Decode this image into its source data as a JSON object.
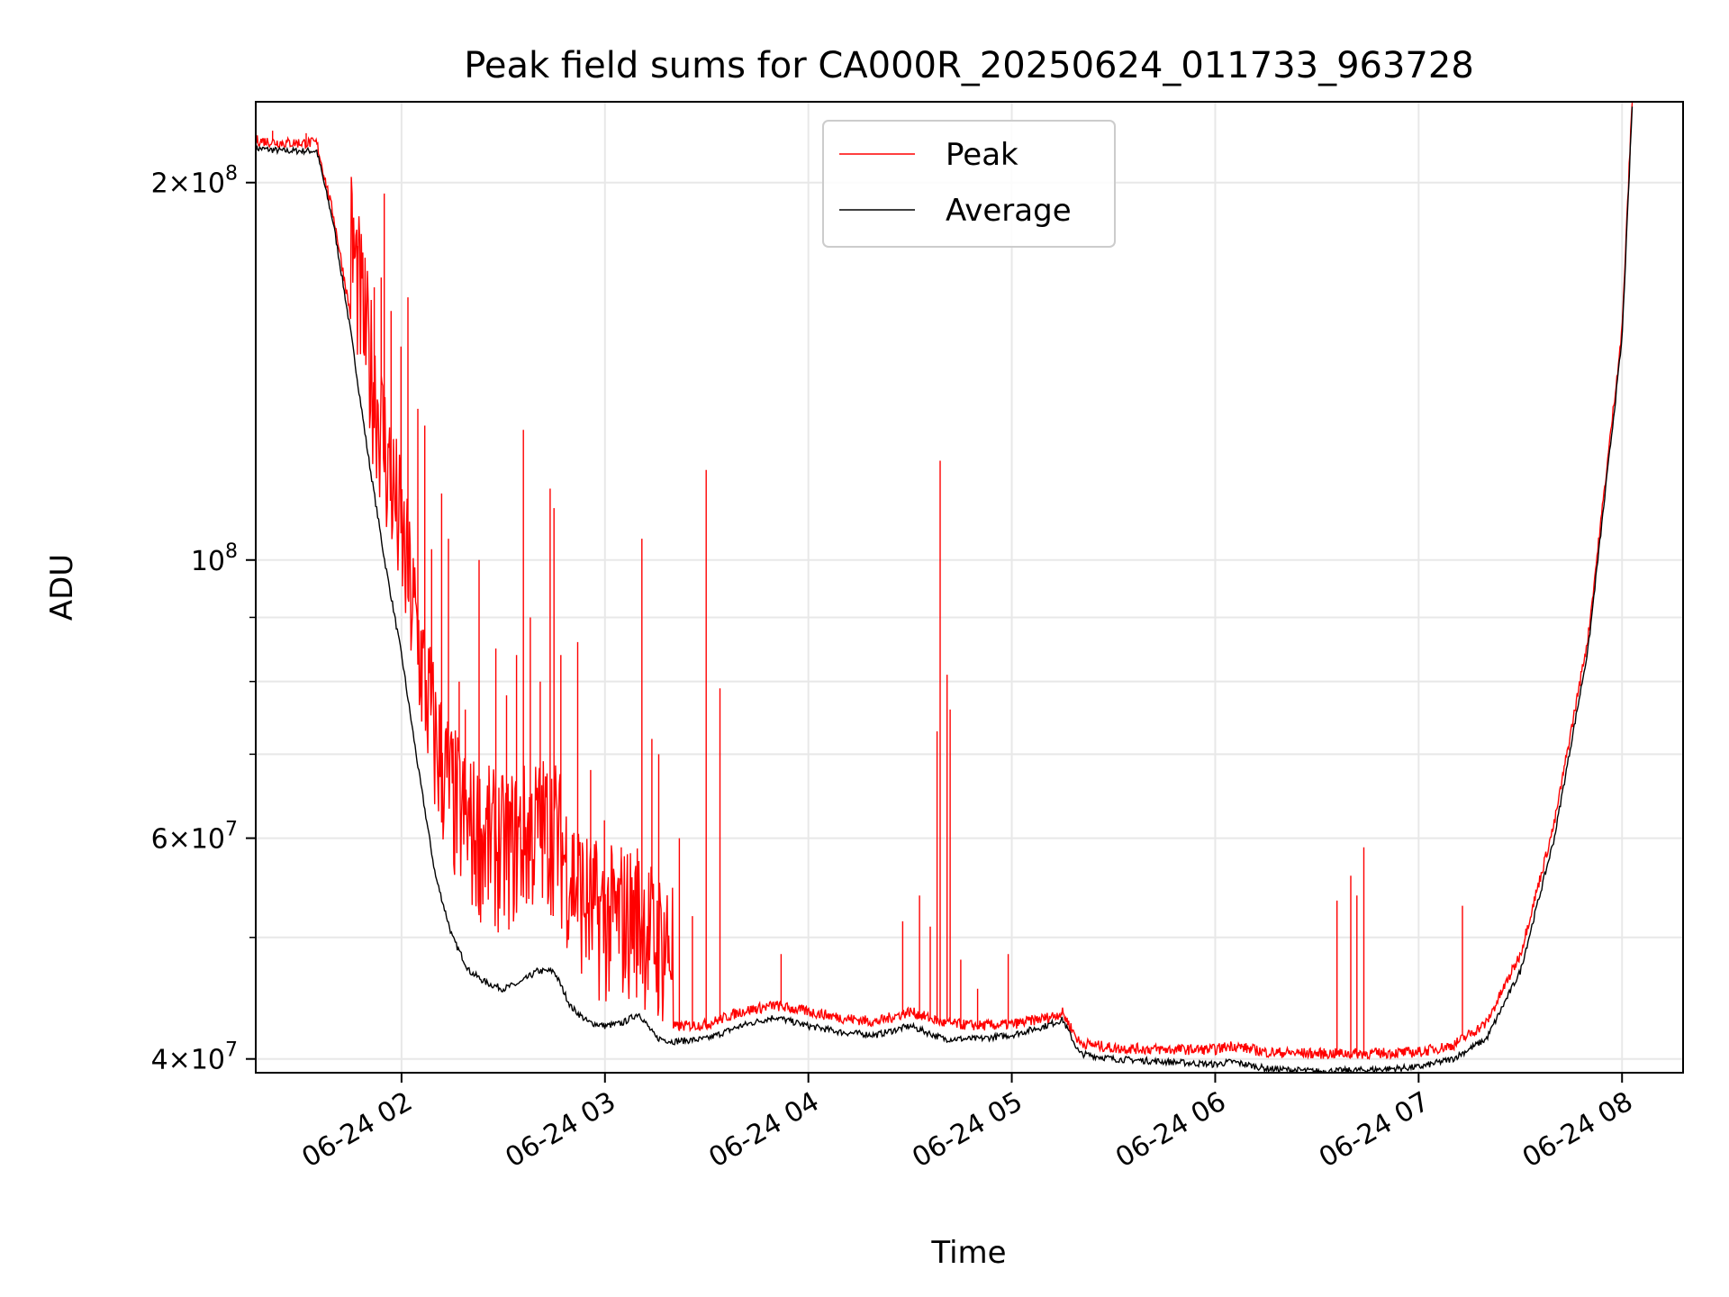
{
  "chart_data": {
    "type": "line",
    "title": "Peak field sums for CA000R_20250624_011733_963728",
    "xlabel": "Time",
    "ylabel": "ADU",
    "y_scale": "log",
    "grid": true,
    "legend_placement": "top-center",
    "xlim": [
      "2025-06-24 01:17",
      "2025-06-24 08:18"
    ],
    "ylim": [
      39000000,
      232000000
    ],
    "x_ticks": [
      {
        "t": "2025-06-24 02:00",
        "label": "06-24 02"
      },
      {
        "t": "2025-06-24 03:00",
        "label": "06-24 03"
      },
      {
        "t": "2025-06-24 04:00",
        "label": "06-24 04"
      },
      {
        "t": "2025-06-24 05:00",
        "label": "06-24 05"
      },
      {
        "t": "2025-06-24 06:00",
        "label": "06-24 06"
      },
      {
        "t": "2025-06-24 07:00",
        "label": "06-24 07"
      },
      {
        "t": "2025-06-24 08:00",
        "label": "06-24 08"
      }
    ],
    "y_ticks": [
      {
        "v": 40000000,
        "mant": "4",
        "exp": "7"
      },
      {
        "v": 60000000,
        "mant": "6",
        "exp": "7"
      },
      {
        "v": 100000000,
        "mant": "",
        "exp": "8"
      },
      {
        "v": 200000000,
        "mant": "2",
        "exp": "8"
      }
    ],
    "series": [
      {
        "name": "Average",
        "color": "#000000",
        "x": [
          "2025-06-24 01:17",
          "2025-06-24 01:25",
          "2025-06-24 01:35",
          "2025-06-24 01:40",
          "2025-06-24 01:45",
          "2025-06-24 01:50",
          "2025-06-24 01:55",
          "2025-06-24 02:00",
          "2025-06-24 02:05",
          "2025-06-24 02:10",
          "2025-06-24 02:15",
          "2025-06-24 02:20",
          "2025-06-24 02:25",
          "2025-06-24 02:30",
          "2025-06-24 02:35",
          "2025-06-24 02:40",
          "2025-06-24 02:45",
          "2025-06-24 02:50",
          "2025-06-24 02:55",
          "2025-06-24 03:00",
          "2025-06-24 03:05",
          "2025-06-24 03:10",
          "2025-06-24 03:15",
          "2025-06-24 03:20",
          "2025-06-24 03:30",
          "2025-06-24 03:40",
          "2025-06-24 03:50",
          "2025-06-24 04:00",
          "2025-06-24 04:10",
          "2025-06-24 04:20",
          "2025-06-24 04:30",
          "2025-06-24 04:40",
          "2025-06-24 04:50",
          "2025-06-24 05:00",
          "2025-06-24 05:10",
          "2025-06-24 05:15",
          "2025-06-24 05:20",
          "2025-06-24 05:30",
          "2025-06-24 05:45",
          "2025-06-24 06:00",
          "2025-06-24 06:05",
          "2025-06-24 06:15",
          "2025-06-24 06:30",
          "2025-06-24 06:45",
          "2025-06-24 07:00",
          "2025-06-24 07:10",
          "2025-06-24 07:20",
          "2025-06-24 07:30",
          "2025-06-24 07:40",
          "2025-06-24 07:50",
          "2025-06-24 08:00",
          "2025-06-24 08:03"
        ],
        "values": [
          213000000,
          212000000,
          212000000,
          185000000,
          152000000,
          122000000,
          100000000,
          84000000,
          68000000,
          56000000,
          50000000,
          47000000,
          46000000,
          45500000,
          46000000,
          47000000,
          47000000,
          44000000,
          42800000,
          42500000,
          42700000,
          43500000,
          41600000,
          41300000,
          41500000,
          42500000,
          43200000,
          42500000,
          42000000,
          41800000,
          42500000,
          41500000,
          41500000,
          41800000,
          42500000,
          43000000,
          40400000,
          40000000,
          39800000,
          39600000,
          39800000,
          39300000,
          39100000,
          39200000,
          39400000,
          40000000,
          41500000,
          47000000,
          60000000,
          85000000,
          150000000,
          230000000
        ]
      },
      {
        "name": "Peak",
        "color": "#ff0000",
        "base_x": [
          "2025-06-24 01:17",
          "2025-06-24 01:25",
          "2025-06-24 01:35",
          "2025-06-24 01:40",
          "2025-06-24 01:45",
          "2025-06-24 01:50",
          "2025-06-24 01:55",
          "2025-06-24 02:00",
          "2025-06-24 02:05",
          "2025-06-24 02:10",
          "2025-06-24 02:15",
          "2025-06-24 02:20",
          "2025-06-24 02:25",
          "2025-06-24 02:30",
          "2025-06-24 02:35",
          "2025-06-24 02:40",
          "2025-06-24 02:45",
          "2025-06-24 02:50",
          "2025-06-24 02:55",
          "2025-06-24 03:00",
          "2025-06-24 03:05",
          "2025-06-24 03:10",
          "2025-06-24 03:15",
          "2025-06-24 03:20",
          "2025-06-24 03:30",
          "2025-06-24 03:40",
          "2025-06-24 03:50",
          "2025-06-24 04:00",
          "2025-06-24 04:10",
          "2025-06-24 04:20",
          "2025-06-24 04:30",
          "2025-06-24 04:40",
          "2025-06-24 04:50",
          "2025-06-24 05:00",
          "2025-06-24 05:10",
          "2025-06-24 05:15",
          "2025-06-24 05:20",
          "2025-06-24 05:30",
          "2025-06-24 05:45",
          "2025-06-24 06:00",
          "2025-06-24 06:05",
          "2025-06-24 06:15",
          "2025-06-24 06:30",
          "2025-06-24 06:45",
          "2025-06-24 07:00",
          "2025-06-24 07:10",
          "2025-06-24 07:20",
          "2025-06-24 07:30",
          "2025-06-24 07:40",
          "2025-06-24 07:50",
          "2025-06-24 08:00",
          "2025-06-24 08:03"
        ],
        "base_values": [
          214000000,
          213000000,
          213000000,
          186000000,
          155000000,
          126000000,
          105000000,
          89000000,
          73000000,
          61000000,
          55000000,
          52000000,
          51000000,
          50000000,
          51000000,
          52000000,
          52000000,
          48000000,
          45000000,
          44000000,
          44000000,
          44500000,
          42200000,
          42000000,
          42200000,
          43200000,
          43700000,
          43200000,
          42700000,
          42400000,
          43200000,
          42300000,
          42100000,
          42200000,
          42700000,
          43100000,
          40800000,
          40400000,
          40300000,
          40300000,
          40600000,
          40100000,
          40000000,
          40000000,
          40100000,
          40600000,
          42300000,
          48000000,
          61000000,
          86000000,
          151000000,
          231000000
        ],
        "spikes": [
          {
            "t": "2025-06-24 01:22",
            "v": 220000000
          },
          {
            "t": "2025-06-24 01:32",
            "v": 219000000
          },
          {
            "t": "2025-06-24 01:47",
            "v": 178000000
          },
          {
            "t": "2025-06-24 01:50",
            "v": 170000000
          },
          {
            "t": "2025-06-24 01:52",
            "v": 165000000
          },
          {
            "t": "2025-06-24 01:54",
            "v": 168000000
          },
          {
            "t": "2025-06-24 01:55",
            "v": 196000000
          },
          {
            "t": "2025-06-24 01:57",
            "v": 158000000
          },
          {
            "t": "2025-06-24 02:00",
            "v": 148000000
          },
          {
            "t": "2025-06-24 02:02",
            "v": 162000000
          },
          {
            "t": "2025-06-24 02:05",
            "v": 132000000
          },
          {
            "t": "2025-06-24 02:07",
            "v": 128000000
          },
          {
            "t": "2025-06-24 02:09",
            "v": 102000000
          },
          {
            "t": "2025-06-24 02:12",
            "v": 113000000
          },
          {
            "t": "2025-06-24 02:14",
            "v": 104000000
          },
          {
            "t": "2025-06-24 02:17",
            "v": 80000000
          },
          {
            "t": "2025-06-24 02:19",
            "v": 76000000
          },
          {
            "t": "2025-06-24 02:23",
            "v": 100000000
          },
          {
            "t": "2025-06-24 02:28",
            "v": 85000000
          },
          {
            "t": "2025-06-24 02:31",
            "v": 78000000
          },
          {
            "t": "2025-06-24 02:34",
            "v": 84000000
          },
          {
            "t": "2025-06-24 02:36",
            "v": 127000000
          },
          {
            "t": "2025-06-24 02:38",
            "v": 90000000
          },
          {
            "t": "2025-06-24 02:41",
            "v": 80000000
          },
          {
            "t": "2025-06-24 02:44",
            "v": 114000000
          },
          {
            "t": "2025-06-24 02:45",
            "v": 110000000
          },
          {
            "t": "2025-06-24 02:47",
            "v": 84000000
          },
          {
            "t": "2025-06-24 02:52",
            "v": 86000000
          },
          {
            "t": "2025-06-24 02:56",
            "v": 68000000
          },
          {
            "t": "2025-06-24 03:00",
            "v": 62000000
          },
          {
            "t": "2025-06-24 03:03",
            "v": 55000000
          },
          {
            "t": "2025-06-24 03:05",
            "v": 59000000
          },
          {
            "t": "2025-06-24 03:11",
            "v": 104000000
          },
          {
            "t": "2025-06-24 03:14",
            "v": 72000000
          },
          {
            "t": "2025-06-24 03:16",
            "v": 70000000
          },
          {
            "t": "2025-06-24 03:22",
            "v": 60000000
          },
          {
            "t": "2025-06-24 03:26",
            "v": 52000000
          },
          {
            "t": "2025-06-24 03:30",
            "v": 118000000
          },
          {
            "t": "2025-06-24 03:34",
            "v": 79000000
          },
          {
            "t": "2025-06-24 03:40",
            "v": 43500000
          },
          {
            "t": "2025-06-24 03:52",
            "v": 48500000
          },
          {
            "t": "2025-06-24 04:28",
            "v": 51500000
          },
          {
            "t": "2025-06-24 04:33",
            "v": 54000000
          },
          {
            "t": "2025-06-24 04:36",
            "v": 51000000
          },
          {
            "t": "2025-06-24 04:38",
            "v": 73000000
          },
          {
            "t": "2025-06-24 04:39",
            "v": 120000000
          },
          {
            "t": "2025-06-24 04:41",
            "v": 81000000
          },
          {
            "t": "2025-06-24 04:42",
            "v": 76000000
          },
          {
            "t": "2025-06-24 04:45",
            "v": 48000000
          },
          {
            "t": "2025-06-24 04:50",
            "v": 45500000
          },
          {
            "t": "2025-06-24 04:59",
            "v": 48500000
          },
          {
            "t": "2025-06-24 05:35",
            "v": 40900000
          },
          {
            "t": "2025-06-24 05:50",
            "v": 41000000
          },
          {
            "t": "2025-06-24 06:36",
            "v": 53500000
          },
          {
            "t": "2025-06-24 06:40",
            "v": 56000000
          },
          {
            "t": "2025-06-24 06:42",
            "v": 54000000
          },
          {
            "t": "2025-06-24 06:44",
            "v": 59000000
          },
          {
            "t": "2025-06-24 07:13",
            "v": 53000000
          }
        ]
      }
    ]
  }
}
